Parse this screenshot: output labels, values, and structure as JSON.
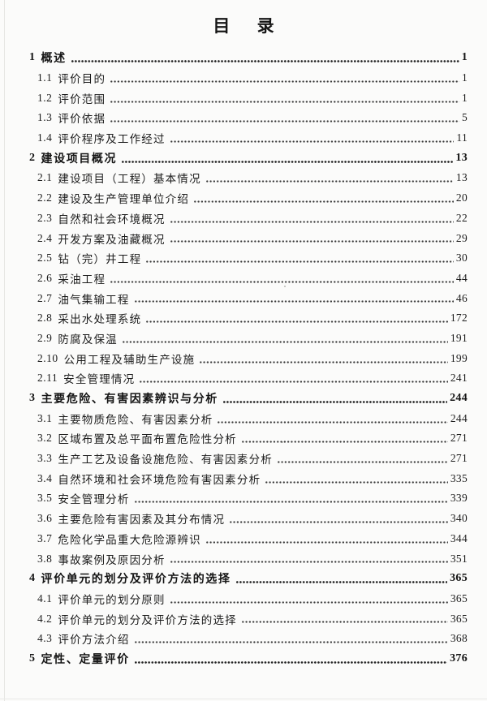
{
  "page": {
    "title": "目 录",
    "ink_color": "#1c1c1c",
    "paper_color": "#fbfbfa"
  },
  "toc": {
    "entries": [
      {
        "num": "1",
        "label": "概述",
        "page": "1",
        "level": 1
      },
      {
        "num": "1.1",
        "label": "评价目的",
        "page": "1",
        "level": 2
      },
      {
        "num": "1.2",
        "label": "评价范围",
        "page": "1",
        "level": 2
      },
      {
        "num": "1.3",
        "label": "评价依据",
        "page": "5",
        "level": 2
      },
      {
        "num": "1.4",
        "label": "评价程序及工作经过",
        "page": "11",
        "level": 2
      },
      {
        "num": "2",
        "label": "建设项目概况",
        "page": "13",
        "level": 1
      },
      {
        "num": "2.1",
        "label": "建设项目（工程）基本情况",
        "page": "13",
        "level": 2
      },
      {
        "num": "2.2",
        "label": "建设及生产管理单位介绍",
        "page": "20",
        "level": 2
      },
      {
        "num": "2.3",
        "label": "自然和社会环境概况",
        "page": "22",
        "level": 2
      },
      {
        "num": "2.4",
        "label": "开发方案及油藏概况",
        "page": "29",
        "level": 2
      },
      {
        "num": "2.5",
        "label": "钻（完）井工程",
        "page": "30",
        "level": 2
      },
      {
        "num": "2.6",
        "label": "采油工程",
        "page": "44",
        "level": 2
      },
      {
        "num": "2.7",
        "label": "油气集输工程",
        "page": "46",
        "level": 2
      },
      {
        "num": "2.8",
        "label": "采出水处理系统",
        "page": "172",
        "level": 2
      },
      {
        "num": "2.9",
        "label": "防腐及保温",
        "page": "191",
        "level": 2
      },
      {
        "num": "2.10",
        "label": "公用工程及辅助生产设施",
        "page": "199",
        "level": 2
      },
      {
        "num": "2.11",
        "label": "安全管理情况",
        "page": "241",
        "level": 2
      },
      {
        "num": "3",
        "label": "主要危险、有害因素辨识与分析",
        "page": "244",
        "level": 1
      },
      {
        "num": "3.1",
        "label": "主要物质危险、有害因素分析",
        "page": "244",
        "level": 2
      },
      {
        "num": "3.2",
        "label": "区域布置及总平面布置危险性分析",
        "page": "271",
        "level": 2
      },
      {
        "num": "3.3",
        "label": "生产工艺及设备设施危险、有害因素分析",
        "page": "271",
        "level": 2
      },
      {
        "num": "3.4",
        "label": "自然环境和社会环境危险有害因素分析",
        "page": "335",
        "level": 2
      },
      {
        "num": "3.5",
        "label": "安全管理分析",
        "page": "339",
        "level": 2
      },
      {
        "num": "3.6",
        "label": "主要危险有害因素及其分布情况",
        "page": "340",
        "level": 2
      },
      {
        "num": "3.7",
        "label": "危险化学品重大危险源辨识",
        "page": "344",
        "level": 2
      },
      {
        "num": "3.8",
        "label": "事故案例及原因分析",
        "page": "351",
        "level": 2
      },
      {
        "num": "4",
        "label": "评价单元的划分及评价方法的选择",
        "page": "365",
        "level": 1
      },
      {
        "num": "4.1",
        "label": "评价单元的划分原则",
        "page": "365",
        "level": 2
      },
      {
        "num": "4.2",
        "label": "评价单元的划分及评价方法的选择",
        "page": "365",
        "level": 2
      },
      {
        "num": "4.3",
        "label": "评价方法介绍",
        "page": "368",
        "level": 2
      },
      {
        "num": "5",
        "label": "定性、定量评价",
        "page": "376",
        "level": 1
      }
    ]
  }
}
